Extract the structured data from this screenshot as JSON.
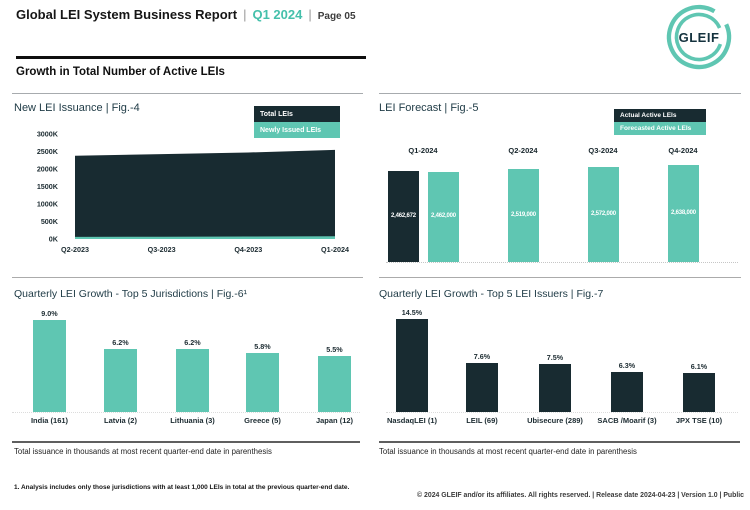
{
  "header": {
    "title": "Global LEI System Business Report",
    "pipe": "|",
    "period": "Q1 2024",
    "page": "Page 05",
    "section_title": "Growth in Total Number of Active LEIs",
    "logo_text": "GLEIF"
  },
  "colors": {
    "dark": "#182b31",
    "teal": "#5fc6b2",
    "accent_text": "#45c0ab"
  },
  "chart_data": [
    {
      "id": "fig4",
      "type": "area",
      "title": "New LEI Issuance | Fig.-4",
      "categories": [
        "Q2-2023",
        "Q3-2023",
        "Q4-2023",
        "Q1-2024"
      ],
      "series": [
        {
          "name": "Total LEIs",
          "color": "#182b31",
          "values": [
            2380000,
            2425000,
            2470000,
            2545000
          ]
        },
        {
          "name": "Newly Issued LEIs",
          "color": "#5fc6b2",
          "values": [
            60000,
            65000,
            70000,
            80000
          ]
        }
      ],
      "ylim": [
        0,
        3000000
      ],
      "ytick_labels": [
        "0K",
        "500K",
        "1000K",
        "1500K",
        "2000K",
        "2500K",
        "3000K"
      ],
      "grid": false,
      "legend_position": "top-right"
    },
    {
      "id": "fig5",
      "type": "bar",
      "title": "LEI Forecast | Fig.-5",
      "categories": [
        "Q1-2024",
        "Q2-2024",
        "Q3-2024",
        "Q4-2024"
      ],
      "series": [
        {
          "name": "Actual Active LEIs",
          "color": "#182b31",
          "values": [
            2462672,
            null,
            null,
            null
          ]
        },
        {
          "name": "Forecasted Active LEIs",
          "color": "#5fc6b2",
          "values": [
            2462000,
            2519000,
            2572000,
            2638000
          ]
        }
      ],
      "data_labels": [
        "2,462,672",
        "2,462,000",
        "2,519,000",
        "2,572,000",
        "2,638,000"
      ],
      "ylim": [
        0,
        2638000
      ],
      "legend_position": "top-right"
    },
    {
      "id": "fig6",
      "type": "bar",
      "title": "Quarterly LEI Growth - Top 5 Jurisdictions | Fig.-6¹",
      "categories": [
        "India (161)",
        "Latvia (2)",
        "Lithuania (3)",
        "Greece (5)",
        "Japan (12)"
      ],
      "values": [
        9.0,
        6.2,
        6.2,
        5.8,
        5.5
      ],
      "data_labels": [
        "9.0%",
        "6.2%",
        "6.2%",
        "5.8%",
        "5.5%"
      ],
      "bar_color": "#5fc6b2",
      "ylim": [
        0,
        9.5
      ],
      "note": "Total issuance in thousands at most recent quarter-end date in parenthesis"
    },
    {
      "id": "fig7",
      "type": "bar",
      "title": "Quarterly LEI Growth - Top 5 LEI Issuers | Fig.-7",
      "categories": [
        "NasdaqLEI (1)",
        "LEIL (69)",
        "Ubisecure (289)",
        "SACB /Moarif (3)",
        "JPX TSE (10)"
      ],
      "values": [
        14.5,
        7.6,
        7.5,
        6.3,
        6.1
      ],
      "data_labels": [
        "14.5%",
        "7.6%",
        "7.5%",
        "6.3%",
        "6.1%"
      ],
      "bar_color": "#182b31",
      "ylim": [
        0,
        15
      ],
      "note": "Total issuance in thousands at most recent quarter-end date in parenthesis"
    }
  ],
  "footer": {
    "footnote": "1. Analysis includes only those jurisdictions with at least 1,000 LEIs in total at the previous quarter-end date.",
    "copyright": "© 2024 GLEIF and/or its affiliates. All rights reserved. | Release date 2024-04-23 | Version 1.0 | Public"
  }
}
